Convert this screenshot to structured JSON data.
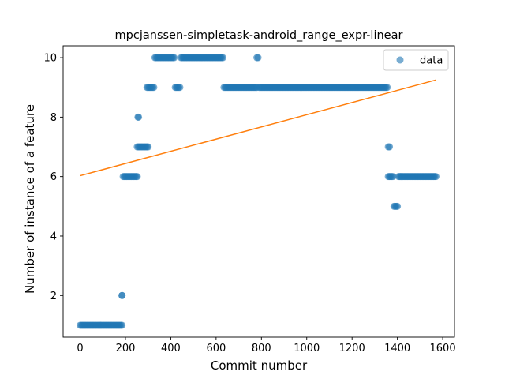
{
  "chart_data": {
    "type": "scatter",
    "title": "mpcjanssen-simpletask-android_range_expr-linear",
    "xlabel": "Commit number",
    "ylabel": "Number of instance of a feature",
    "xlim": [
      -75,
      1652
    ],
    "ylim": [
      0.6,
      10.4
    ],
    "xticks": [
      0,
      200,
      400,
      600,
      800,
      1000,
      1200,
      1400,
      1600
    ],
    "yticks": [
      2,
      4,
      6,
      8,
      10
    ],
    "legend": {
      "placement": "top-right",
      "entries": [
        "data"
      ]
    },
    "grid": false,
    "colors": {
      "data": "#1f77b4",
      "fit": "#ff7f0e"
    },
    "series": [
      {
        "name": "data",
        "kind": "scatter",
        "segments": [
          {
            "x_start": 0,
            "x_end": 185,
            "y": 1
          },
          {
            "x_start": 185,
            "x_end": 185,
            "y": 2
          },
          {
            "x_start": 190,
            "x_end": 252,
            "y": 6
          },
          {
            "x_start": 255,
            "x_end": 258,
            "y": 8
          },
          {
            "x_start": 252,
            "x_end": 300,
            "y": 7
          },
          {
            "x_start": 295,
            "x_end": 325,
            "y": 9
          },
          {
            "x_start": 330,
            "x_end": 415,
            "y": 10
          },
          {
            "x_start": 420,
            "x_end": 440,
            "y": 9
          },
          {
            "x_start": 445,
            "x_end": 630,
            "y": 10
          },
          {
            "x_start": 635,
            "x_end": 780,
            "y": 9
          },
          {
            "x_start": 780,
            "x_end": 785,
            "y": 10
          },
          {
            "x_start": 790,
            "x_end": 1355,
            "y": 9
          },
          {
            "x_start": 1360,
            "x_end": 1365,
            "y": 7
          },
          {
            "x_start": 1360,
            "x_end": 1380,
            "y": 6
          },
          {
            "x_start": 1385,
            "x_end": 1400,
            "y": 5
          },
          {
            "x_start": 1405,
            "x_end": 1570,
            "y": 6
          }
        ]
      },
      {
        "kind": "line",
        "x": [
          0,
          1570
        ],
        "y": [
          6.03,
          9.25
        ]
      }
    ]
  }
}
